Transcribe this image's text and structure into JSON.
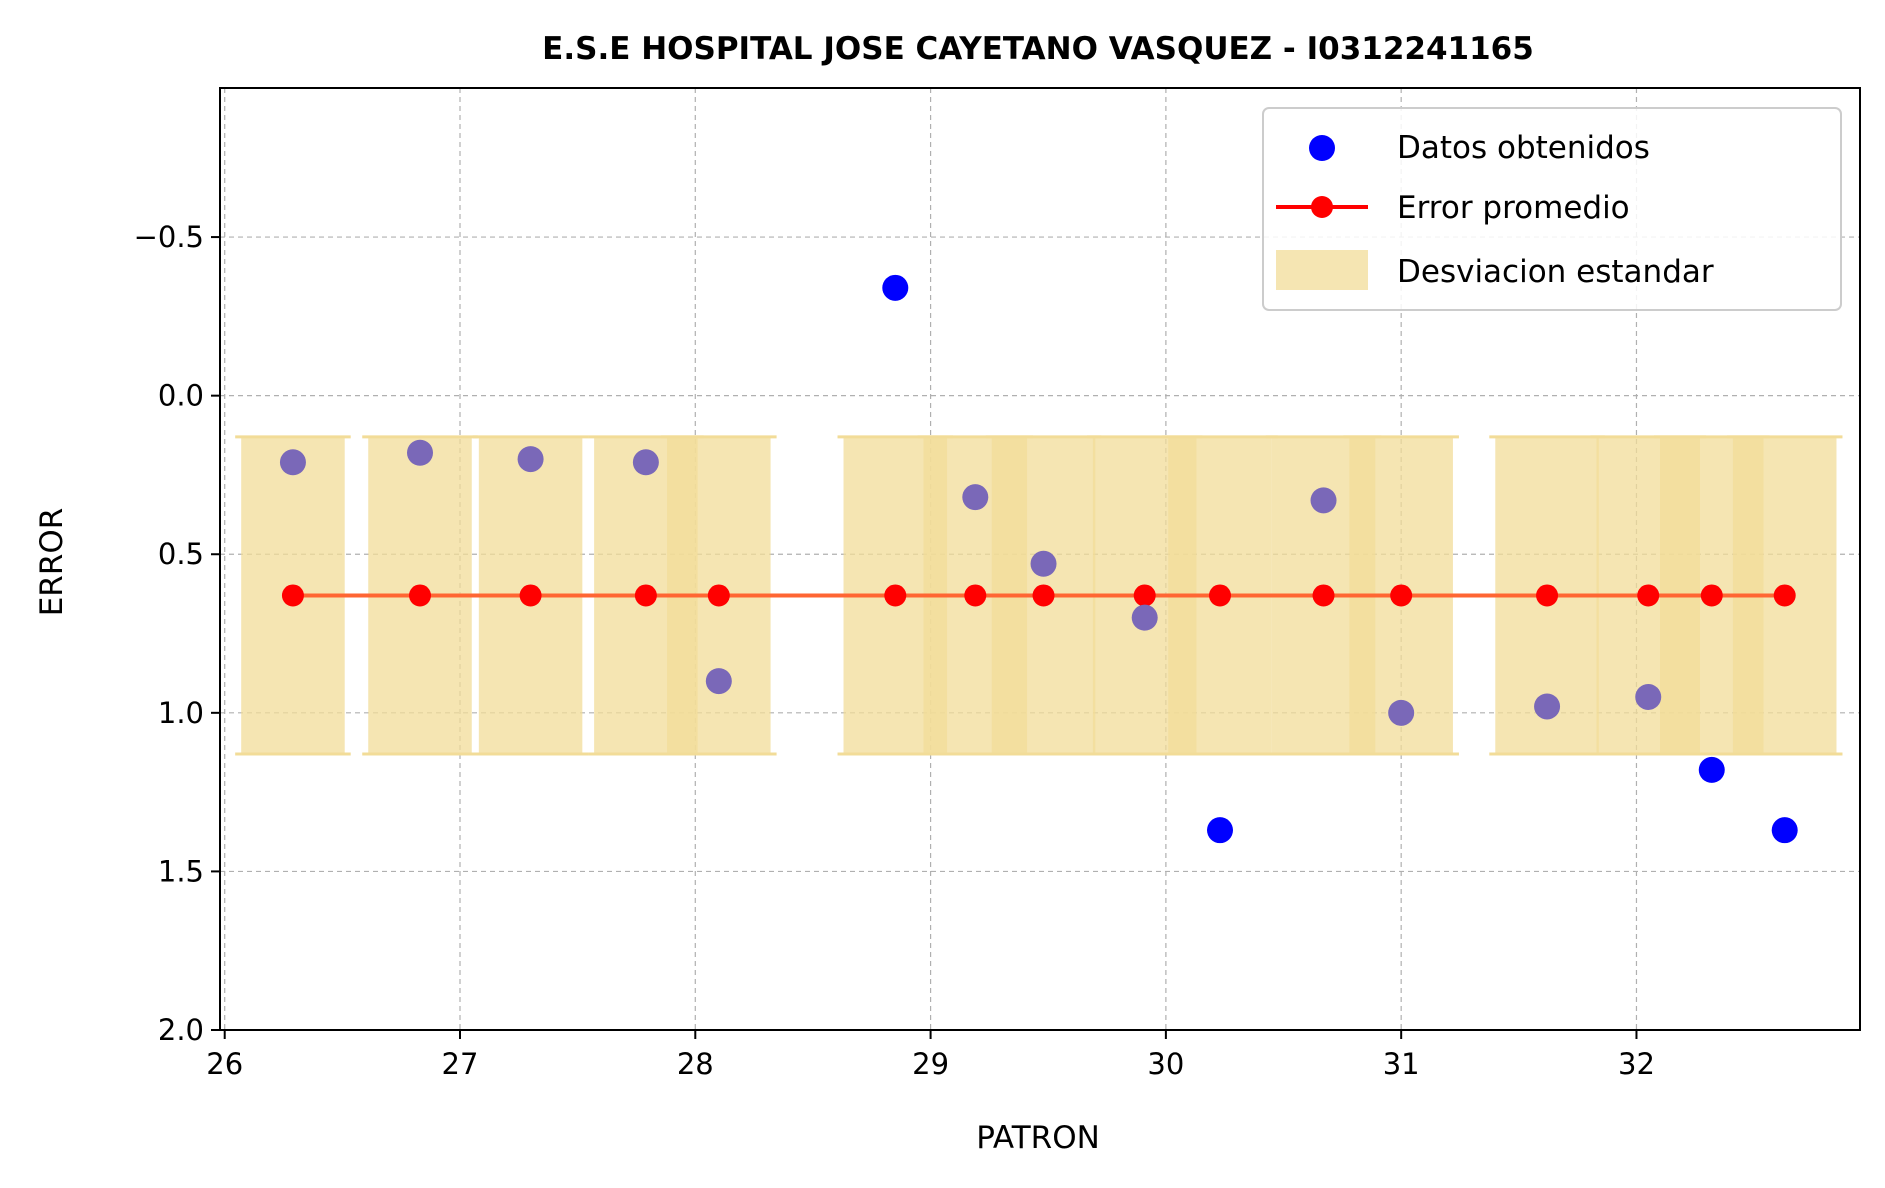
{
  "chart_data": {
    "type": "scatter",
    "title": "E.S.E HOSPITAL JOSE CAYETANO VASQUEZ - I0312241165",
    "xlabel": "PATRON",
    "ylabel": "ERROR",
    "xlim": [
      25.98,
      32.95
    ],
    "ylim": [
      2.0,
      -0.97
    ],
    "y_inverted": true,
    "grid": true,
    "legend_position": "top-right",
    "xticks": [
      26,
      27,
      28,
      29,
      30,
      31,
      32
    ],
    "xtick_labels": [
      "26",
      "27",
      "28",
      "29",
      "30",
      "31",
      "32"
    ],
    "yticks": [
      -0.5,
      0.0,
      0.5,
      1.0,
      1.5,
      2.0
    ],
    "ytick_labels": [
      "−0.5",
      "0.0",
      "0.5",
      "1.0",
      "1.5",
      "2.0"
    ],
    "legend": [
      "Datos obtenidos",
      "Error promedio",
      "Desviacion estandar"
    ],
    "colors": {
      "points": "#0000ff",
      "mean": "#ff0000",
      "mean_line": "#ff6633",
      "band": "#f2dc98",
      "points_in_band": "#7a68b8"
    },
    "series": [
      {
        "name": "Datos obtenidos",
        "x": [
          26.29,
          26.83,
          27.3,
          27.79,
          28.1,
          28.85,
          29.19,
          29.48,
          29.91,
          30.23,
          30.67,
          31.0,
          31.62,
          32.05,
          32.32,
          32.63
        ],
        "y": [
          0.21,
          0.18,
          0.2,
          0.21,
          0.9,
          -0.34,
          0.32,
          0.53,
          0.7,
          1.37,
          0.33,
          1.0,
          0.98,
          0.95,
          1.18,
          1.37
        ]
      },
      {
        "name": "Error promedio",
        "x": [
          26.29,
          26.83,
          27.3,
          27.79,
          28.1,
          28.85,
          29.19,
          29.48,
          29.91,
          30.23,
          30.67,
          31.0,
          31.62,
          32.05,
          32.32,
          32.63
        ],
        "y": [
          0.63,
          0.63,
          0.63,
          0.63,
          0.63,
          0.63,
          0.63,
          0.63,
          0.63,
          0.63,
          0.63,
          0.63,
          0.63,
          0.63,
          0.63,
          0.63
        ]
      },
      {
        "name": "Desviacion estandar",
        "center": 0.63,
        "std": 0.5,
        "x": [
          26.29,
          26.83,
          27.3,
          27.79,
          28.1,
          28.85,
          29.19,
          29.48,
          29.91,
          30.23,
          30.67,
          31.0,
          31.62,
          32.05,
          32.32,
          32.63
        ],
        "half_width": 0.22
      }
    ]
  }
}
